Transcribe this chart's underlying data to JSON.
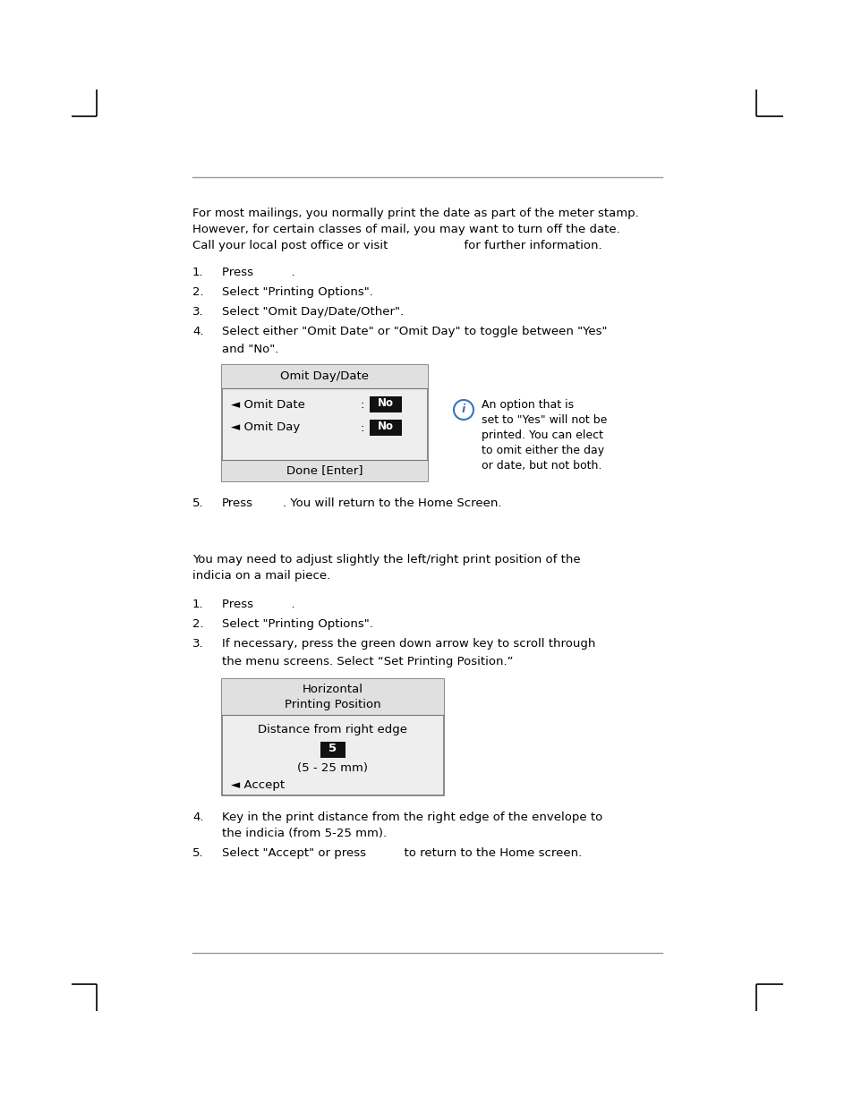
{
  "bg_color": "#ffffff",
  "intro_text_line1": "For most mailings, you normally print the date as part of the meter stamp.",
  "intro_text_line2": "However, for certain classes of mail, you may want to turn off the date.",
  "intro_text_line3": "Call your local post office or visit                    for further information.",
  "step1_1": "Press          .",
  "step1_2": "Select \"Printing Options\".",
  "step1_3": "Select \"Omit Day/Date/Other\".",
  "step1_4a": "Select either \"Omit Date\" or \"Omit Day\" to toggle between \"Yes\"",
  "step1_4b": "and \"No\".",
  "step1_5": ". You will return to the Home Screen.",
  "box1_title": "Omit Day/Date",
  "box1_row1_label": "◄ Omit Date",
  "box1_row2_label": "◄ Omit Day",
  "box1_footer": "Done [Enter]",
  "info_text_line1": "An option that is",
  "info_text_line2": "set to \"Yes\" will not be",
  "info_text_line3": "printed. You can elect",
  "info_text_line4": "to omit either the day",
  "info_text_line5": "or date, but not both.",
  "sec2_line1": "You may need to adjust slightly the left/right print position of the",
  "sec2_line2": "indicia on a mail piece.",
  "step2_1": "Press          .",
  "step2_2": "Select \"Printing Options\".",
  "step2_3a": "If necessary, press the green down arrow key to scroll through",
  "step2_3b": "the menu screens. Select “Set Printing Position.”",
  "box2_title1": "Horizontal",
  "box2_title2": "Printing Position",
  "box2_dist": "Distance from right edge",
  "box2_value": "5",
  "box2_range": "(5 - 25 mm)",
  "box2_accept": "◄ Accept",
  "step2_4a": "Key in the print distance from the right edge of the envelope to",
  "step2_4b": "the indicia (from 5-25 mm).",
  "step2_5": "Select \"Accept\" or press          to return to the Home screen.",
  "font_size": 9.5,
  "text_color": "#000000",
  "info_circle_color": "#3377bb",
  "line_color": "#999999",
  "box_line_color": "#777777",
  "header_bg": "#e0e0e0",
  "body_bg": "#eeeeee",
  "black_bg": "#111111",
  "white": "#ffffff"
}
